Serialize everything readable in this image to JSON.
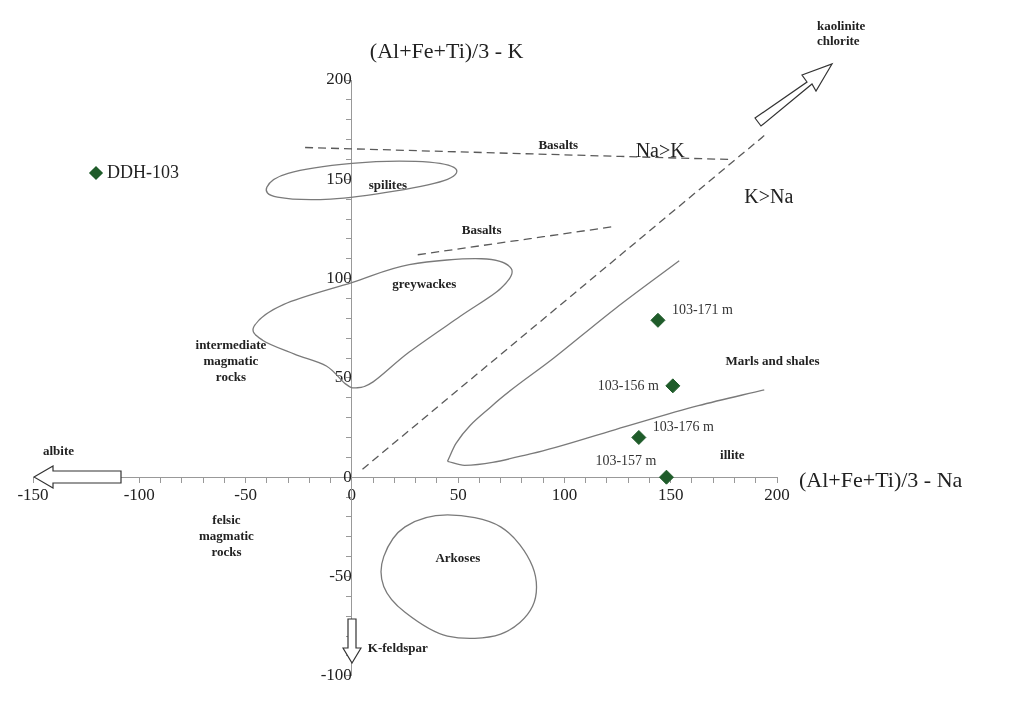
{
  "chart_data": {
    "type": "scatter",
    "xlabel": "(Al+Fe+Ti)/3 - Na",
    "ylabel": "(Al+Fe+Ti)/3 - K",
    "xlim": [
      -150,
      200
    ],
    "ylim": [
      -100,
      200
    ],
    "xticks": [
      -150,
      {
        "value": -140,
        "label": null
      },
      {
        "value": -130,
        "label": null
      },
      {
        "value": -120,
        "label": null
      },
      {
        "value": -110,
        "label": null
      },
      -100,
      {
        "value": -90,
        "label": null
      },
      {
        "value": -80,
        "label": null
      },
      {
        "value": -70,
        "label": null
      },
      {
        "value": -60,
        "label": null
      },
      -50,
      {
        "value": -40,
        "label": null
      },
      {
        "value": -30,
        "label": null
      },
      {
        "value": -20,
        "label": null
      },
      {
        "value": -10,
        "label": null
      },
      0,
      {
        "value": 10,
        "label": null
      },
      {
        "value": 20,
        "label": null
      },
      {
        "value": 30,
        "label": null
      },
      {
        "value": 40,
        "label": null
      },
      50,
      {
        "value": 60,
        "label": null
      },
      {
        "value": 70,
        "label": null
      },
      {
        "value": 80,
        "label": null
      },
      {
        "value": 90,
        "label": null
      },
      100,
      {
        "value": 110,
        "label": null
      },
      {
        "value": 120,
        "label": null
      },
      {
        "value": 130,
        "label": null
      },
      {
        "value": 140,
        "label": null
      },
      150,
      {
        "value": 160,
        "label": null
      },
      {
        "value": 170,
        "label": null
      },
      {
        "value": 180,
        "label": null
      },
      {
        "value": 190,
        "label": null
      },
      200
    ],
    "yticks": [
      -100,
      {
        "value": -90,
        "label": null
      },
      {
        "value": -80,
        "label": null
      },
      {
        "value": -70,
        "label": null
      },
      {
        "value": -60,
        "label": null
      },
      -50,
      {
        "value": -40,
        "label": null
      },
      {
        "value": -30,
        "label": null
      },
      {
        "value": -20,
        "label": null
      },
      {
        "value": -10,
        "label": null
      },
      0,
      {
        "value": 10,
        "label": null
      },
      {
        "value": 20,
        "label": null
      },
      {
        "value": 30,
        "label": null
      },
      {
        "value": 40,
        "label": null
      },
      50,
      {
        "value": 60,
        "label": null
      },
      {
        "value": 70,
        "label": null
      },
      {
        "value": 80,
        "label": null
      },
      {
        "value": 90,
        "label": null
      },
      100,
      {
        "value": 110,
        "label": null
      },
      {
        "value": 120,
        "label": null
      },
      {
        "value": 130,
        "label": null
      },
      {
        "value": 140,
        "label": null
      },
      150,
      {
        "value": 160,
        "label": null
      },
      {
        "value": 170,
        "label": null
      },
      {
        "value": 180,
        "label": null
      },
      {
        "value": 190,
        "label": null
      },
      200
    ],
    "grid": false,
    "legend": "top left",
    "marker": "diamond",
    "series": [
      {
        "name": "DDH-103",
        "type": "scatter",
        "color": "#1f5c2a",
        "x": [
          144,
          151,
          135,
          148
        ],
        "values": [
          79,
          46,
          20,
          0
        ],
        "value_labels": [
          "103-171 m",
          "103-156 m",
          "103-176 m",
          "103-157 m"
        ]
      },
      {
        "type": "line",
        "color": "#7a7a7a",
        "marker": "none",
        "line_style": "solid",
        "x": [
          45,
          49,
          66,
          95,
          124,
          154
        ],
        "values": [
          8,
          17,
          36,
          60,
          85,
          109
        ]
      },
      {
        "type": "line",
        "color": "#7a7a7a",
        "marker": "none",
        "line_style": "solid",
        "x": [
          45,
          53,
          85,
          124,
          163,
          194
        ],
        "values": [
          8,
          6,
          12,
          24,
          36,
          44
        ]
      },
      {
        "type": "line",
        "color": "#5a5a5a",
        "marker": "none",
        "line_style": "dashed",
        "x": [
          -22,
          177
        ],
        "values": [
          166,
          160
        ]
      },
      {
        "type": "line",
        "color": "#5a5a5a",
        "marker": "none",
        "line_style": "dashed",
        "x": [
          31,
          122
        ],
        "values": [
          112,
          126
        ]
      },
      {
        "type": "line",
        "color": "#5a5a5a",
        "marker": "none",
        "line_style": "dashed",
        "x": [
          5,
          194
        ],
        "values": [
          4,
          172
        ]
      }
    ],
    "annotations": [
      "Na>K",
      "K>Na",
      "Basalts",
      "spilites",
      "Basalts",
      "greywackes",
      "intermediate\nmagmatic\nrocks",
      "felsic\nmagmatic\nrocks",
      "Arkoses",
      "Marls and shales",
      "illite",
      "albite",
      "K-feldspar",
      "kaolinite\nchlorite"
    ]
  }
}
